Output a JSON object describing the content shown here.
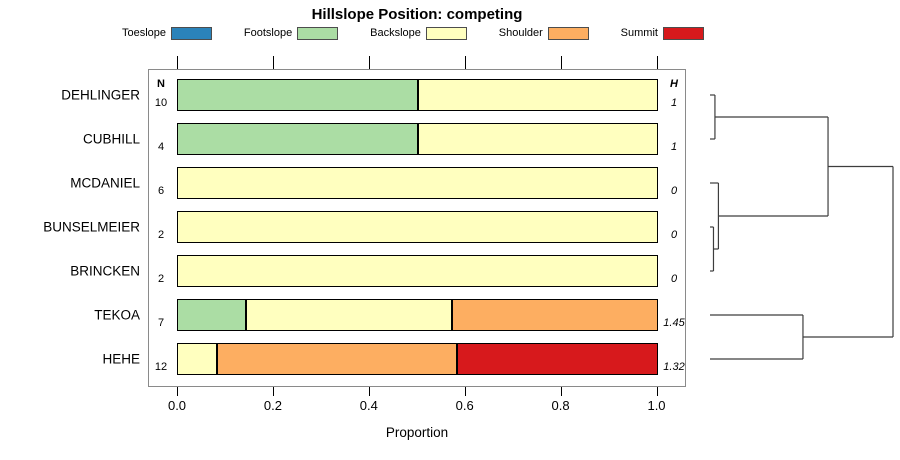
{
  "title": "Hillslope Position: competing",
  "legend": {
    "items": [
      {
        "label": "Toeslope",
        "color": "#2B83BA"
      },
      {
        "label": "Footslope",
        "color": "#ABDDA4"
      },
      {
        "label": "Backslope",
        "color": "#FFFFBF"
      },
      {
        "label": "Shoulder",
        "color": "#FDAE61"
      },
      {
        "label": "Summit",
        "color": "#D7191C"
      }
    ]
  },
  "columns": {
    "n_header": "N",
    "h_header": "H"
  },
  "axis": {
    "xlabel": "Proportion",
    "tick_labels": [
      "0.0",
      "0.2",
      "0.4",
      "0.6",
      "0.8",
      "1.0"
    ],
    "tick_values": [
      0.0,
      0.2,
      0.4,
      0.6,
      0.8,
      1.0
    ]
  },
  "chart_data": {
    "type": "bar",
    "orientation": "horizontal-stacked",
    "title": "Hillslope Position: competing",
    "xlabel": "Proportion",
    "xlim": [
      0,
      1
    ],
    "grid": false,
    "legend_position": "top",
    "categories": [
      "DEHLINGER",
      "CUBHILL",
      "MCDANIEL",
      "BUNSELMEIER",
      "BRINCKEN",
      "TEKOA",
      "HEHE"
    ],
    "n_values": [
      "10",
      "4",
      "6",
      "2",
      "2",
      "7",
      "12"
    ],
    "h_values": [
      "1",
      "1",
      "0",
      "0",
      "0",
      "1.45",
      "1.32"
    ],
    "series": [
      {
        "name": "Toeslope",
        "color": "#2B83BA",
        "values": [
          0,
          0,
          0,
          0,
          0,
          0,
          0
        ]
      },
      {
        "name": "Footslope",
        "color": "#ABDDA4",
        "values": [
          0.5,
          0.5,
          0,
          0,
          0,
          0.143,
          0
        ]
      },
      {
        "name": "Backslope",
        "color": "#FFFFBF",
        "values": [
          0.5,
          0.5,
          1,
          1,
          1,
          0.429,
          0.083
        ]
      },
      {
        "name": "Shoulder",
        "color": "#FDAE61",
        "values": [
          0,
          0,
          0,
          0,
          0,
          0.429,
          0.5
        ]
      },
      {
        "name": "Summit",
        "color": "#D7191C",
        "values": [
          0,
          0,
          0,
          0,
          0,
          0,
          0.417
        ]
      }
    ],
    "dendrogram": {
      "merges": [
        {
          "id": "n1",
          "a": "DEHLINGER",
          "b": "CUBHILL",
          "height": 0.027
        },
        {
          "id": "n2",
          "a": "BUNSELMEIER",
          "b": "BRINCKEN",
          "height": 0.019
        },
        {
          "id": "n3",
          "a": "MCDANIEL",
          "b": "n2",
          "height": 0.046
        },
        {
          "id": "n4",
          "a": "n1",
          "b": "n3",
          "height": 0.645
        },
        {
          "id": "n5",
          "a": "TEKOA",
          "b": "HEHE",
          "height": 0.508
        },
        {
          "id": "n6",
          "a": "n4",
          "b": "n5",
          "height": 1.0
        }
      ]
    }
  }
}
